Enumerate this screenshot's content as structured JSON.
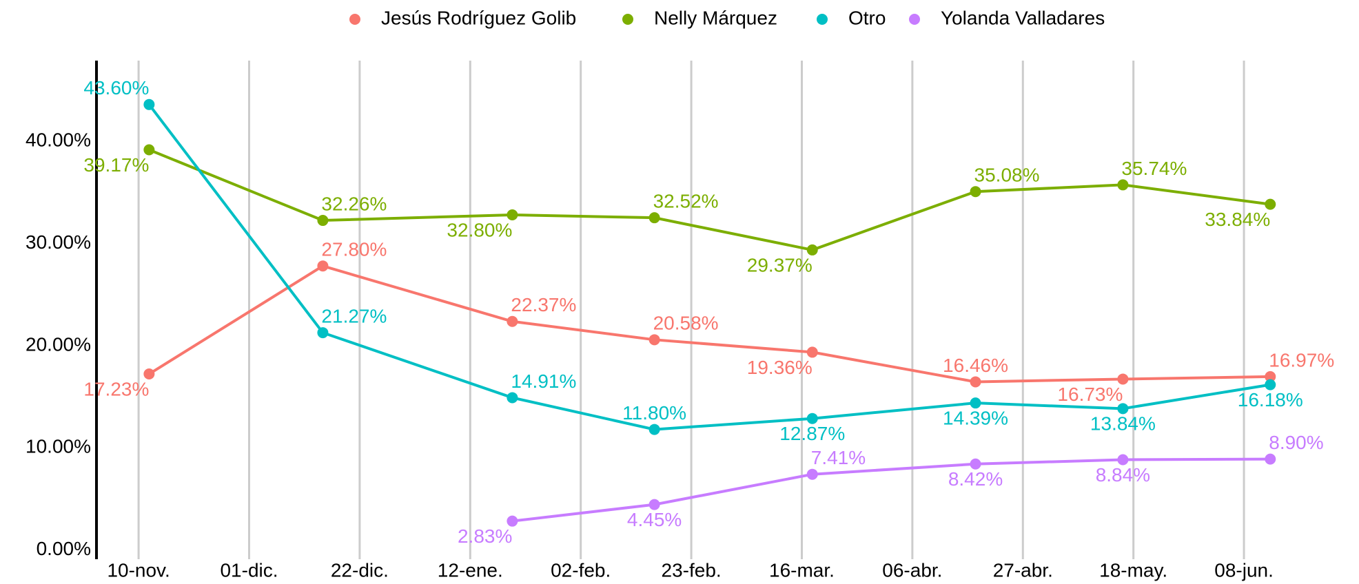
{
  "chart_data": {
    "type": "line",
    "x": [
      2,
      35,
      71,
      98,
      128,
      159,
      187,
      215
    ],
    "xlim": [
      -8,
      224
    ],
    "xticks": [
      {
        "value": 0,
        "label": "10-nov."
      },
      {
        "value": 21,
        "label": "01-dic."
      },
      {
        "value": 42,
        "label": "22-dic."
      },
      {
        "value": 63,
        "label": "12-ene."
      },
      {
        "value": 84,
        "label": "02-feb."
      },
      {
        "value": 105,
        "label": "23-feb."
      },
      {
        "value": 126,
        "label": "16-mar."
      },
      {
        "value": 147,
        "label": "06-abr."
      },
      {
        "value": 168,
        "label": "27-abr."
      },
      {
        "value": 189,
        "label": "18-may."
      },
      {
        "value": 210,
        "label": "08-jun."
      }
    ],
    "ylim": [
      -0.9,
      47.9
    ],
    "yticks": [
      {
        "value": 0,
        "label": "0.00%"
      },
      {
        "value": 10,
        "label": "10.00%"
      },
      {
        "value": 20,
        "label": "20.00%"
      },
      {
        "value": 30,
        "label": "30.00%"
      },
      {
        "value": 40,
        "label": "40.00%"
      }
    ],
    "grid": true,
    "legend": "top",
    "series": [
      {
        "name": "Jesús Rodríguez Golib",
        "color": "#F8766D",
        "values": [
          17.23,
          27.8,
          22.37,
          20.58,
          19.36,
          16.46,
          16.73,
          16.97
        ],
        "value_labels": [
          "17.23%",
          "27.80%",
          "22.37%",
          "20.58%",
          "19.36%",
          "16.46%",
          "16.73%",
          "16.97%"
        ]
      },
      {
        "name": "Nelly Márquez",
        "color": "#7CAE00",
        "values": [
          39.17,
          32.26,
          32.8,
          32.52,
          29.37,
          35.08,
          35.74,
          33.84
        ],
        "value_labels": [
          "39.17%",
          "32.26%",
          "32.80%",
          "32.52%",
          "29.37%",
          "35.08%",
          "35.74%",
          "33.84%"
        ]
      },
      {
        "name": "Otro",
        "color": "#00BFC4",
        "values": [
          43.6,
          21.27,
          14.91,
          11.8,
          12.87,
          14.39,
          13.84,
          16.18
        ],
        "value_labels": [
          "43.60%",
          "21.27%",
          "14.91%",
          "11.80%",
          "12.87%",
          "14.39%",
          "13.84%",
          "16.18%"
        ]
      },
      {
        "name": "Yolanda Valladares",
        "color": "#C77CFF",
        "values": [
          null,
          null,
          2.83,
          4.45,
          7.41,
          8.42,
          8.84,
          8.9
        ],
        "value_labels": [
          null,
          null,
          "2.83%",
          "4.45%",
          "7.41%",
          "8.42%",
          "8.84%",
          "8.90%"
        ]
      }
    ]
  }
}
